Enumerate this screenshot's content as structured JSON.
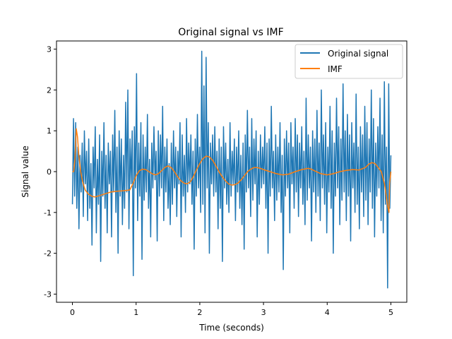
{
  "chart_data": {
    "type": "line",
    "title": "Original signal vs IMF",
    "xlabel": "Time (seconds)",
    "ylabel": "Signal value",
    "xlim": [
      -0.25,
      5.25
    ],
    "ylim": [
      -3.2,
      3.2
    ],
    "x_ticks": [
      0,
      1,
      2,
      3,
      4,
      5
    ],
    "y_ticks": [
      -3,
      -2,
      -1,
      0,
      1,
      2,
      3
    ],
    "grid": false,
    "legend_position": "top-right",
    "series": [
      {
        "name": "Original signal",
        "color": "#1f77b4",
        "x_start": 0,
        "x_end": 5,
        "values": [
          -0.8,
          1.3,
          -0.6,
          1.2,
          -0.9,
          0.6,
          -1.4,
          0.4,
          -0.5,
          0.7,
          -1.1,
          1.0,
          -0.3,
          0.5,
          -1.2,
          0.8,
          -0.9,
          0.2,
          -1.8,
          0.6,
          -0.4,
          1.1,
          -1.5,
          0.3,
          -0.8,
          0.9,
          -2.2,
          0.5,
          -0.6,
          1.2,
          -0.9,
          0.4,
          -1.5,
          0.7,
          -0.3,
          0.5,
          -1.6,
          0.9,
          -0.5,
          1.5,
          -1.0,
          0.6,
          -2.0,
          1.0,
          -0.6,
          0.8,
          -1.3,
          0.4,
          -0.9,
          1.7,
          -0.5,
          2.0,
          -1.4,
          0.8,
          -0.3,
          1.0,
          -2.55,
          1.1,
          -0.4,
          2.4,
          -1.2,
          0.7,
          -0.6,
          1.2,
          -2.15,
          0.9,
          -0.7,
          0.6,
          -0.5,
          1.4,
          -0.9,
          0.3,
          -1.6,
          0.7,
          -0.4,
          1.1,
          -0.2,
          0.5,
          -1.7,
          1.0,
          -0.6,
          0.9,
          -0.4,
          1.6,
          -1.2,
          0.6,
          -0.5,
          0.8,
          -0.9,
          0.2,
          -1.3,
          0.7,
          -0.8,
          1.0,
          -0.4,
          0.6,
          -1.1,
          0.5,
          -0.3,
          1.2,
          -1.6,
          0.9,
          -0.6,
          0.4,
          -1.0,
          1.3,
          -0.5,
          0.7,
          -0.3,
          0.9,
          -0.8,
          0.5,
          -1.9,
          0.8,
          -0.6,
          1.4,
          -0.4,
          0.6,
          -1.0,
          2.95,
          -0.8,
          2.1,
          -1.5,
          2.8,
          -0.4,
          1.2,
          -2.0,
          0.7,
          -0.3,
          0.9,
          -0.6,
          1.1,
          -0.5,
          0.5,
          -1.4,
          0.8,
          -0.9,
          0.6,
          -2.2,
          1.1,
          -0.4,
          0.7,
          -0.8,
          0.3,
          -1.0,
          1.2,
          -0.6,
          0.5,
          -0.3,
          0.8,
          -1.2,
          0.6,
          -0.5,
          1.0,
          -0.9,
          0.4,
          -1.3,
          0.7,
          -1.9,
          0.9,
          -0.5,
          1.5,
          -0.4,
          0.6,
          -1.1,
          1.3,
          -0.7,
          0.8,
          -0.3,
          1.0,
          -1.6,
          0.5,
          -0.8,
          0.9,
          -0.4,
          0.6,
          -0.3,
          1.1,
          -0.9,
          0.7,
          -2.0,
          0.8,
          -0.6,
          1.6,
          -0.4,
          0.5,
          -1.2,
          0.9,
          -0.7,
          0.6,
          -0.5,
          1.2,
          -1.0,
          0.4,
          -2.4,
          0.8,
          -0.6,
          1.0,
          -0.4,
          0.7,
          -1.5,
          1.2,
          -0.3,
          0.6,
          -0.9,
          1.3,
          -0.5,
          0.9,
          -1.1,
          0.7,
          -0.4,
          1.1,
          -0.8,
          0.5,
          -1.3,
          1.8,
          -0.7,
          0.9,
          -0.4,
          0.6,
          -1.7,
          1.0,
          -0.5,
          0.8,
          -1.0,
          1.5,
          -0.6,
          0.7,
          -1.2,
          2.0,
          -0.4,
          0.9,
          -0.8,
          1.2,
          -1.5,
          0.6,
          -0.5,
          1.6,
          -0.9,
          1.0,
          -2.0,
          0.7,
          -0.6,
          1.8,
          -0.4,
          1.1,
          -1.3,
          0.8,
          -0.7,
          2.15,
          -0.5,
          1.0,
          -1.2,
          1.4,
          -0.6,
          0.9,
          -1.7,
          1.2,
          -0.4,
          0.7,
          -1.0,
          1.9,
          -0.8,
          0.6,
          -1.4,
          1.1,
          -0.5,
          0.9,
          -1.1,
          1.6,
          -0.7,
          1.2,
          -1.3,
          0.8,
          -0.5,
          2.0,
          -0.9,
          1.3,
          -1.6,
          0.7,
          -0.6,
          1.1,
          -0.4,
          1.8,
          -1.2,
          0.9,
          -1.5,
          2.2,
          -0.8,
          0.6,
          -2.85,
          2.15,
          -0.9,
          0.4
        ]
      },
      {
        "name": "IMF",
        "color": "#ff7f0e",
        "x": [
          0,
          0.02,
          0.04,
          0.06,
          0.08,
          0.1,
          0.13,
          0.16,
          0.2,
          0.25,
          0.3,
          0.35,
          0.4,
          0.5,
          0.6,
          0.7,
          0.8,
          0.9,
          0.95,
          1.0,
          1.05,
          1.1,
          1.15,
          1.2,
          1.25,
          1.3,
          1.35,
          1.4,
          1.45,
          1.5,
          1.55,
          1.6,
          1.65,
          1.7,
          1.75,
          1.8,
          1.85,
          1.9,
          1.95,
          2.0,
          2.05,
          2.1,
          2.15,
          2.2,
          2.25,
          2.3,
          2.35,
          2.4,
          2.45,
          2.5,
          2.55,
          2.6,
          2.65,
          2.7,
          2.75,
          2.8,
          2.85,
          2.9,
          2.95,
          3.0,
          3.1,
          3.2,
          3.3,
          3.4,
          3.5,
          3.6,
          3.7,
          3.75,
          3.8,
          3.9,
          4.0,
          4.1,
          4.2,
          4.3,
          4.4,
          4.5,
          4.6,
          4.65,
          4.7,
          4.75,
          4.8,
          4.85,
          4.9,
          4.95,
          4.97,
          4.98,
          5.0
        ],
        "values": [
          0.0,
          0.0,
          0.3,
          1.05,
          0.85,
          0.4,
          0.0,
          -0.25,
          -0.45,
          -0.55,
          -0.6,
          -0.62,
          -0.6,
          -0.55,
          -0.5,
          -0.48,
          -0.47,
          -0.45,
          -0.3,
          -0.1,
          0.02,
          0.06,
          0.05,
          0.0,
          -0.05,
          -0.08,
          -0.05,
          0.02,
          0.1,
          0.14,
          0.1,
          0.0,
          -0.12,
          -0.22,
          -0.28,
          -0.3,
          -0.25,
          -0.12,
          0.05,
          0.2,
          0.32,
          0.38,
          0.36,
          0.28,
          0.15,
          0.0,
          -0.12,
          -0.22,
          -0.3,
          -0.33,
          -0.32,
          -0.28,
          -0.2,
          -0.1,
          0.0,
          0.06,
          0.1,
          0.1,
          0.08,
          0.05,
          0.0,
          -0.05,
          -0.08,
          -0.06,
          0.0,
          0.05,
          0.08,
          0.06,
          0.02,
          -0.05,
          -0.08,
          -0.05,
          0.0,
          0.03,
          0.05,
          0.04,
          0.1,
          0.18,
          0.22,
          0.2,
          0.1,
          0.0,
          -0.3,
          -0.85,
          -1.0,
          -0.3,
          0.0
        ]
      }
    ]
  }
}
